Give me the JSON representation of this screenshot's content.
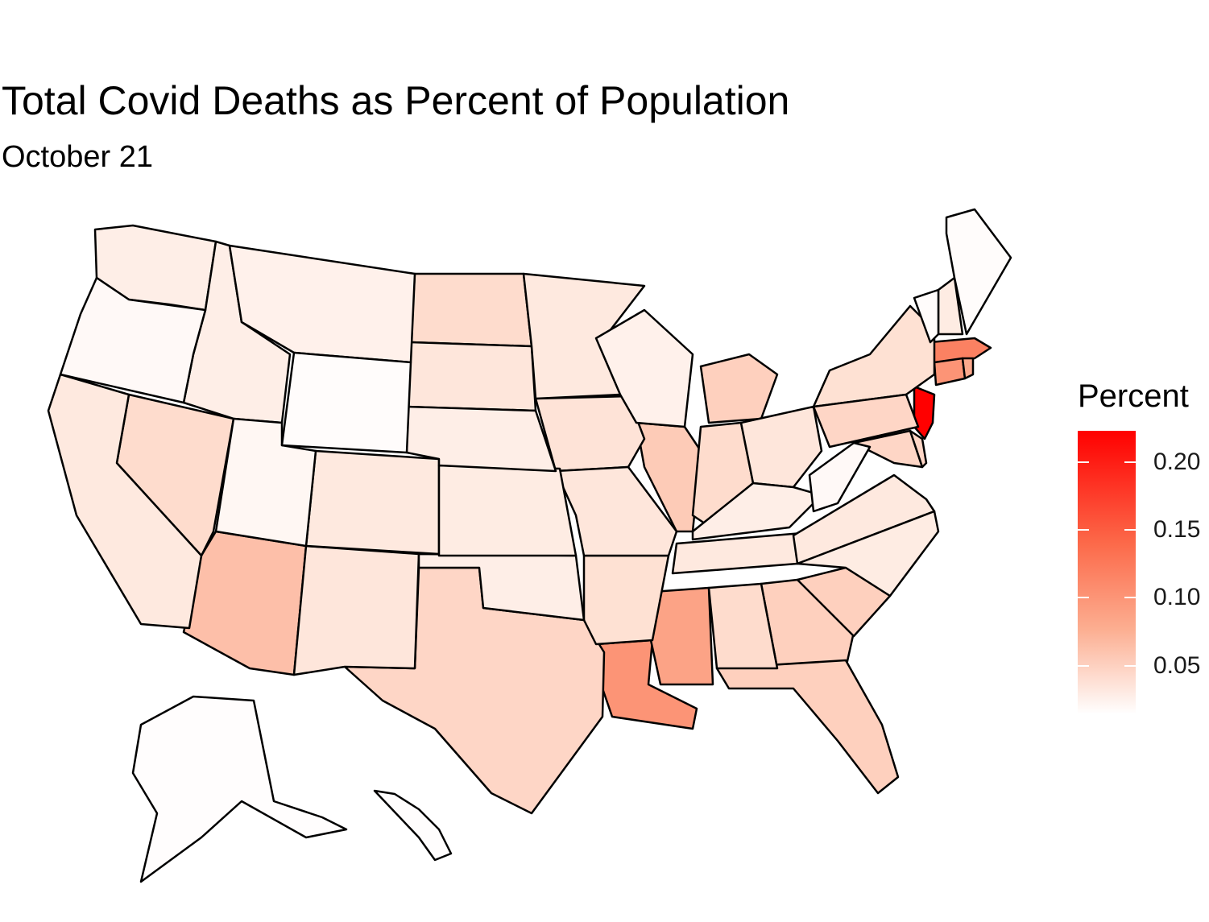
{
  "title": "Total Covid Deaths as Percent of Population",
  "subtitle": "October 21",
  "legend": {
    "title": "Percent",
    "ticks": [
      "0.20",
      "0.15",
      "0.10",
      "0.05"
    ],
    "colors": {
      "high": "#ff0000",
      "mid": "#fc6a4a",
      "low": "#fcae91",
      "none": "#ffffff"
    }
  },
  "map_data": {
    "type": "choropleth",
    "measure": "Total Covid Deaths as Percent of Population",
    "states": [
      {
        "name": "New Jersey",
        "value": 0.225
      },
      {
        "name": "Massachusetts",
        "value": 0.145
      },
      {
        "name": "Connecticut",
        "value": 0.125
      },
      {
        "name": "Rhode Island",
        "value": 0.105
      },
      {
        "name": "Louisiana",
        "value": 0.125
      },
      {
        "name": "Mississippi",
        "value": 0.11
      },
      {
        "name": "Arizona",
        "value": 0.085
      },
      {
        "name": "Illinois",
        "value": 0.075
      },
      {
        "name": "New York",
        "value": 0.055
      },
      {
        "name": "Georgia",
        "value": 0.07
      },
      {
        "name": "South Carolina",
        "value": 0.07
      },
      {
        "name": "Florida",
        "value": 0.07
      },
      {
        "name": "Texas",
        "value": 0.065
      },
      {
        "name": "Maryland",
        "value": 0.065
      },
      {
        "name": "Pennsylvania",
        "value": 0.065
      },
      {
        "name": "North Dakota",
        "value": 0.06
      },
      {
        "name": "Michigan",
        "value": 0.07
      },
      {
        "name": "Delaware",
        "value": 0.065
      },
      {
        "name": "Nevada",
        "value": 0.06
      },
      {
        "name": "Indiana",
        "value": 0.06
      },
      {
        "name": "Alabama",
        "value": 0.06
      },
      {
        "name": "Arkansas",
        "value": 0.055
      },
      {
        "name": "Iowa",
        "value": 0.05
      },
      {
        "name": "New Mexico",
        "value": 0.045
      },
      {
        "name": "South Dakota",
        "value": 0.045
      },
      {
        "name": "Colorado",
        "value": 0.04
      },
      {
        "name": "Missouri",
        "value": 0.045
      },
      {
        "name": "California",
        "value": 0.04
      },
      {
        "name": "Ohio",
        "value": 0.045
      },
      {
        "name": "Tennessee",
        "value": 0.04
      },
      {
        "name": "Virginia",
        "value": 0.04
      },
      {
        "name": "North Carolina",
        "value": 0.035
      },
      {
        "name": "Minnesota",
        "value": 0.04
      },
      {
        "name": "Oklahoma",
        "value": 0.03
      },
      {
        "name": "Kansas",
        "value": 0.035
      },
      {
        "name": "Nebraska",
        "value": 0.03
      },
      {
        "name": "New Hampshire",
        "value": 0.035
      },
      {
        "name": "Kentucky",
        "value": 0.03
      },
      {
        "name": "Washington",
        "value": 0.03
      },
      {
        "name": "Idaho",
        "value": 0.03
      },
      {
        "name": "Montana",
        "value": 0.025
      },
      {
        "name": "Wisconsin",
        "value": 0.025
      },
      {
        "name": "Utah",
        "value": 0.015
      },
      {
        "name": "Oregon",
        "value": 0.01
      },
      {
        "name": "West Virginia",
        "value": 0.01
      },
      {
        "name": "Maine",
        "value": 0.005
      },
      {
        "name": "Wyoming",
        "value": 0.005
      },
      {
        "name": "Vermont",
        "value": 0.005
      },
      {
        "name": "Alaska",
        "value": 0.003
      },
      {
        "name": "Hawaii",
        "value": 0.003
      }
    ]
  }
}
